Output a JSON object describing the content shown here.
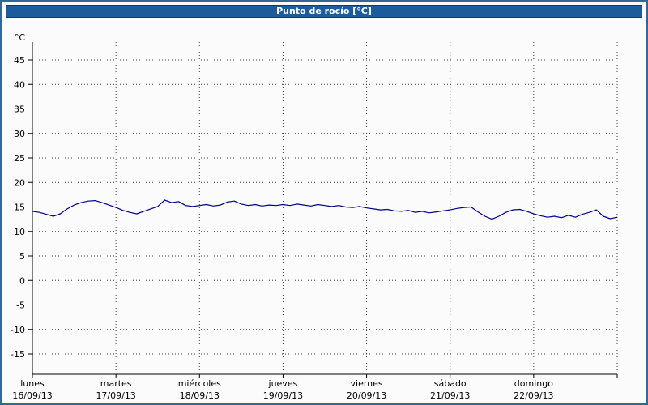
{
  "title": "Punto de rocío [°C]",
  "colors": {
    "frame_border": "#336699",
    "titlebar_bg": "#1c5c9c",
    "titlebar_border": "#0f3d6b",
    "titlebar_text": "#ffffff",
    "background": "#fbfbfb",
    "grid": "#3a3a3a",
    "axis": "#000000",
    "line": "#00008b"
  },
  "chart_data": {
    "type": "line",
    "title": "Punto de rocío [°C]",
    "ylabel": "°C",
    "unit_label": "°C",
    "ylim": [
      -15,
      45
    ],
    "ytick_step": 5,
    "yticks": [
      45,
      40,
      35,
      30,
      25,
      20,
      15,
      10,
      5,
      0,
      -5,
      -10,
      -15
    ],
    "grid": true,
    "grid_color": "#3a3a3a",
    "legend_position": "none",
    "x_days": [
      {
        "name": "lunes",
        "date": "16/09/13"
      },
      {
        "name": "martes",
        "date": "17/09/13"
      },
      {
        "name": "miércoles",
        "date": "18/09/13"
      },
      {
        "name": "jueves",
        "date": "19/09/13"
      },
      {
        "name": "viernes",
        "date": "20/09/13"
      },
      {
        "name": "sábado",
        "date": "21/09/13"
      },
      {
        "name": "domingo",
        "date": "22/09/13"
      }
    ],
    "samples_per_day": 12,
    "series": [
      {
        "name": "Punto de rocío",
        "color": "#00008b",
        "values": [
          14.1,
          13.9,
          13.5,
          13.1,
          13.6,
          14.6,
          15.4,
          15.9,
          16.2,
          16.3,
          15.9,
          15.4,
          14.9,
          14.3,
          13.9,
          13.6,
          14.1,
          14.6,
          15.1,
          16.4,
          15.9,
          16.1,
          15.3,
          15.1,
          15.3,
          15.5,
          15.2,
          15.4,
          16.0,
          16.2,
          15.6,
          15.3,
          15.5,
          15.2,
          15.4,
          15.3,
          15.5,
          15.3,
          15.6,
          15.4,
          15.2,
          15.5,
          15.3,
          15.1,
          15.3,
          15.0,
          14.9,
          15.1,
          14.8,
          14.6,
          14.4,
          14.5,
          14.2,
          14.1,
          14.3,
          13.9,
          14.1,
          13.8,
          14.0,
          14.2,
          14.4,
          14.7,
          14.9,
          15.0,
          14.0,
          13.1,
          12.5,
          13.1,
          13.9,
          14.4,
          14.5,
          14.1,
          13.6,
          13.2,
          12.9,
          13.1,
          12.8,
          13.3,
          12.9,
          13.5,
          13.9,
          14.4,
          13.1,
          12.6,
          12.9
        ]
      }
    ]
  }
}
